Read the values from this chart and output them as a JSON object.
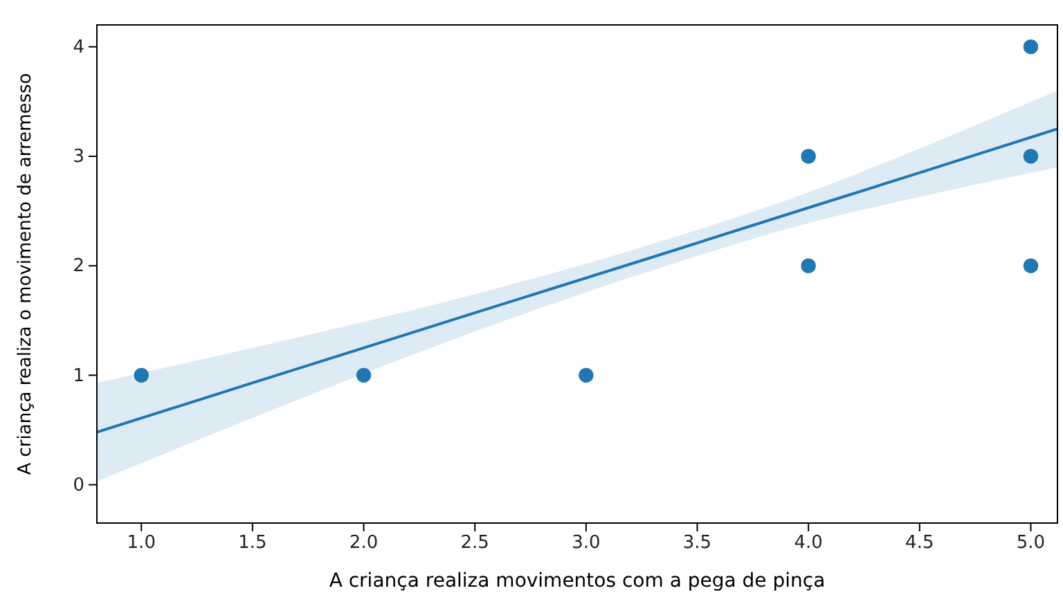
{
  "chart_data": {
    "type": "scatter",
    "xlabel": "A criança realiza movimentos com a pega de pinça",
    "ylabel": "A criança realiza o movimento de arremesso",
    "xlim": [
      0.8,
      5.12
    ],
    "ylim": [
      -0.35,
      4.2
    ],
    "xticks": [
      {
        "value": 1,
        "label": "1.0"
      },
      {
        "value": 1.5,
        "label": "1.5"
      },
      {
        "value": 2,
        "label": "2.0"
      },
      {
        "value": 2.5,
        "label": "2.5"
      },
      {
        "value": 3,
        "label": "3.0"
      },
      {
        "value": 3.5,
        "label": "3.5"
      },
      {
        "value": 4,
        "label": "4.0"
      },
      {
        "value": 4.5,
        "label": "4.5"
      },
      {
        "value": 5,
        "label": "5.0"
      }
    ],
    "yticks": [
      0,
      1,
      2,
      3,
      4
    ],
    "series": [
      {
        "type": "line",
        "color": "#1f77b4",
        "line_style": "solid",
        "x": [
          0.8,
          1.5,
          2.5,
          3.3,
          4,
          4.5,
          5.12
        ],
        "values": [
          0.48,
          0.93,
          1.57,
          2.08,
          2.53,
          2.85,
          3.25
        ],
        "lower": [
          0.03,
          0.61,
          1.4,
          1.96,
          2.39,
          2.63,
          2.9
        ],
        "upper": [
          0.93,
          1.25,
          1.74,
          2.2,
          2.67,
          3.07,
          3.6
        ]
      },
      {
        "marker": "circle",
        "color": "#1f77b4",
        "x": [
          1,
          2,
          3,
          4,
          4,
          5,
          5,
          5
        ],
        "values": [
          1,
          1,
          1,
          3,
          2,
          4,
          3,
          2
        ]
      }
    ]
  }
}
